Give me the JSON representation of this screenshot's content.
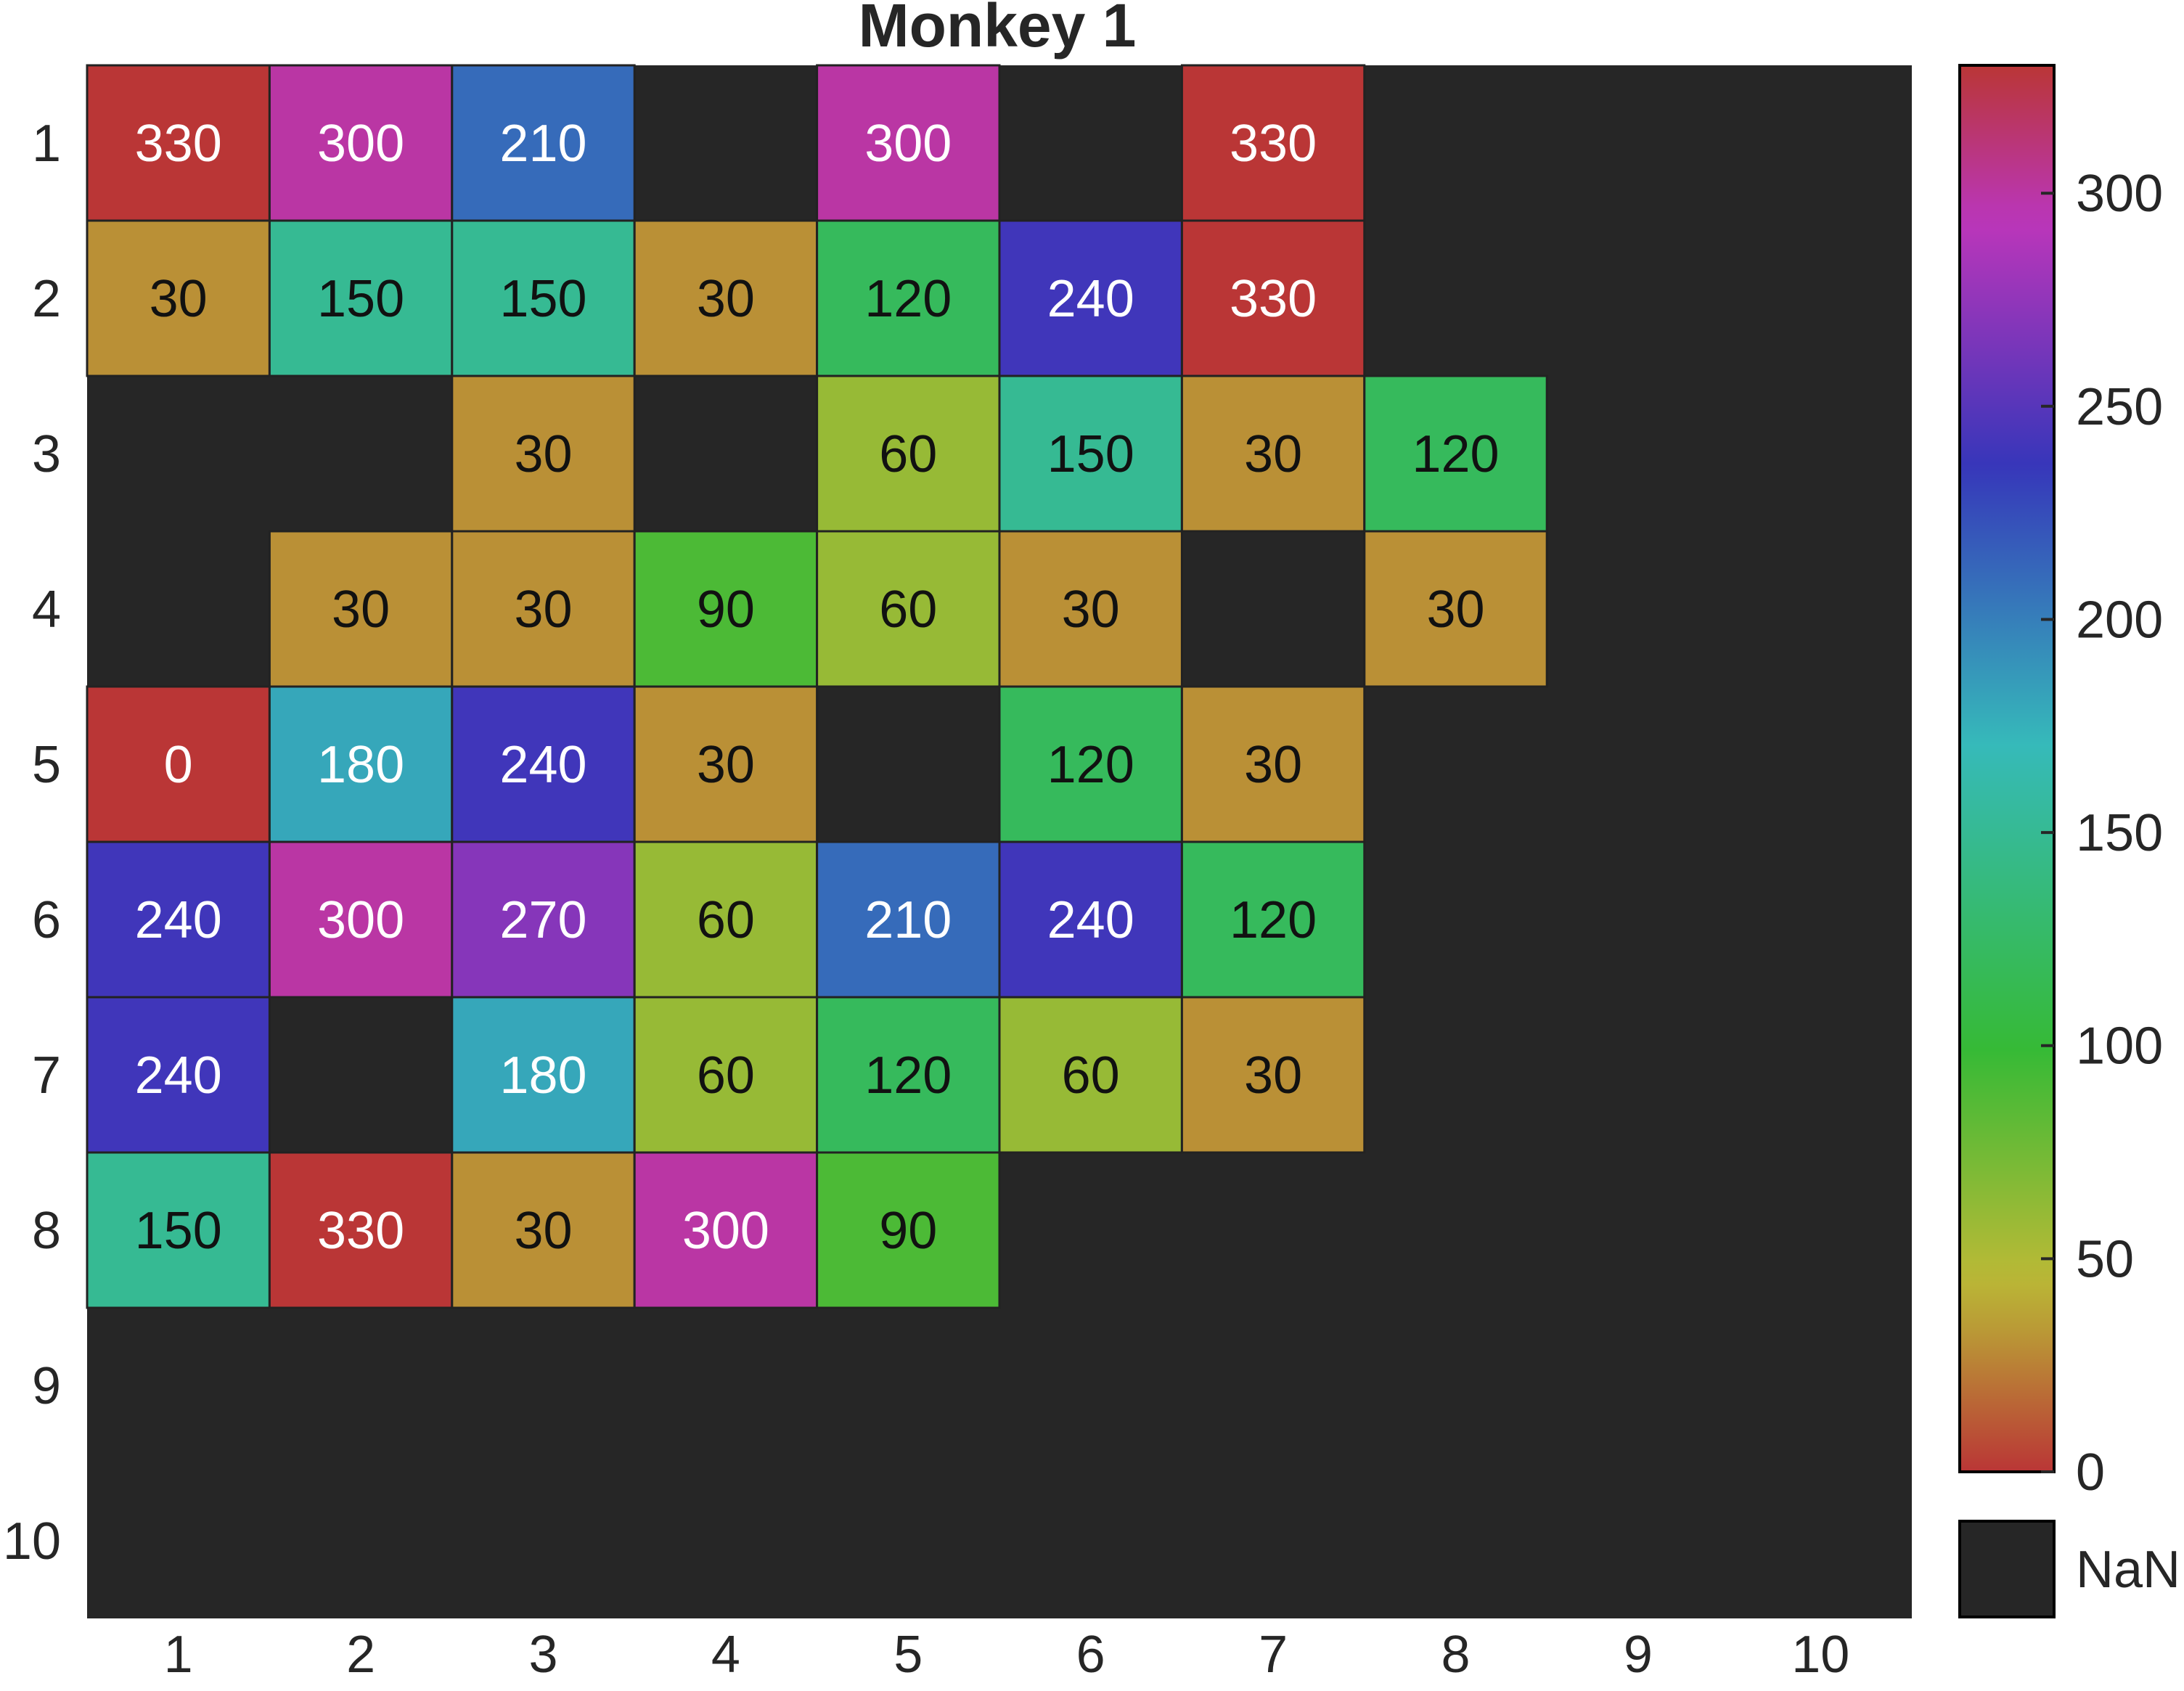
{
  "chart_data": {
    "type": "heatmap",
    "title": "Monkey 1",
    "xlabel": "",
    "ylabel": "",
    "x_categories": [
      "1",
      "2",
      "3",
      "4",
      "5",
      "6",
      "7",
      "8",
      "9",
      "10"
    ],
    "y_categories": [
      "1",
      "2",
      "3",
      "4",
      "5",
      "6",
      "7",
      "8",
      "9",
      "10"
    ],
    "values": [
      [
        330,
        300,
        210,
        null,
        300,
        null,
        330,
        null,
        null,
        null
      ],
      [
        30,
        150,
        150,
        30,
        120,
        240,
        330,
        null,
        null,
        null
      ],
      [
        null,
        null,
        30,
        null,
        60,
        150,
        30,
        120,
        null,
        null
      ],
      [
        null,
        30,
        30,
        90,
        60,
        30,
        null,
        30,
        null,
        null
      ],
      [
        0,
        180,
        240,
        30,
        null,
        120,
        30,
        null,
        null,
        null
      ],
      [
        240,
        300,
        270,
        60,
        210,
        240,
        120,
        null,
        null,
        null
      ],
      [
        240,
        null,
        180,
        60,
        120,
        60,
        30,
        null,
        null,
        null
      ],
      [
        150,
        330,
        30,
        300,
        90,
        null,
        null,
        null,
        null,
        null
      ],
      [
        null,
        null,
        null,
        null,
        null,
        null,
        null,
        null,
        null,
        null
      ],
      [
        null,
        null,
        null,
        null,
        null,
        null,
        null,
        null,
        null,
        null
      ]
    ],
    "colorbar": {
      "range": [
        0,
        330
      ],
      "ticks": [
        "0",
        "50",
        "100",
        "150",
        "200",
        "250",
        "300"
      ],
      "nan_label": "NaN"
    },
    "colormap": "circular hue",
    "nan_color": "#262626",
    "axis_text_color": "#262626",
    "grid": false
  }
}
